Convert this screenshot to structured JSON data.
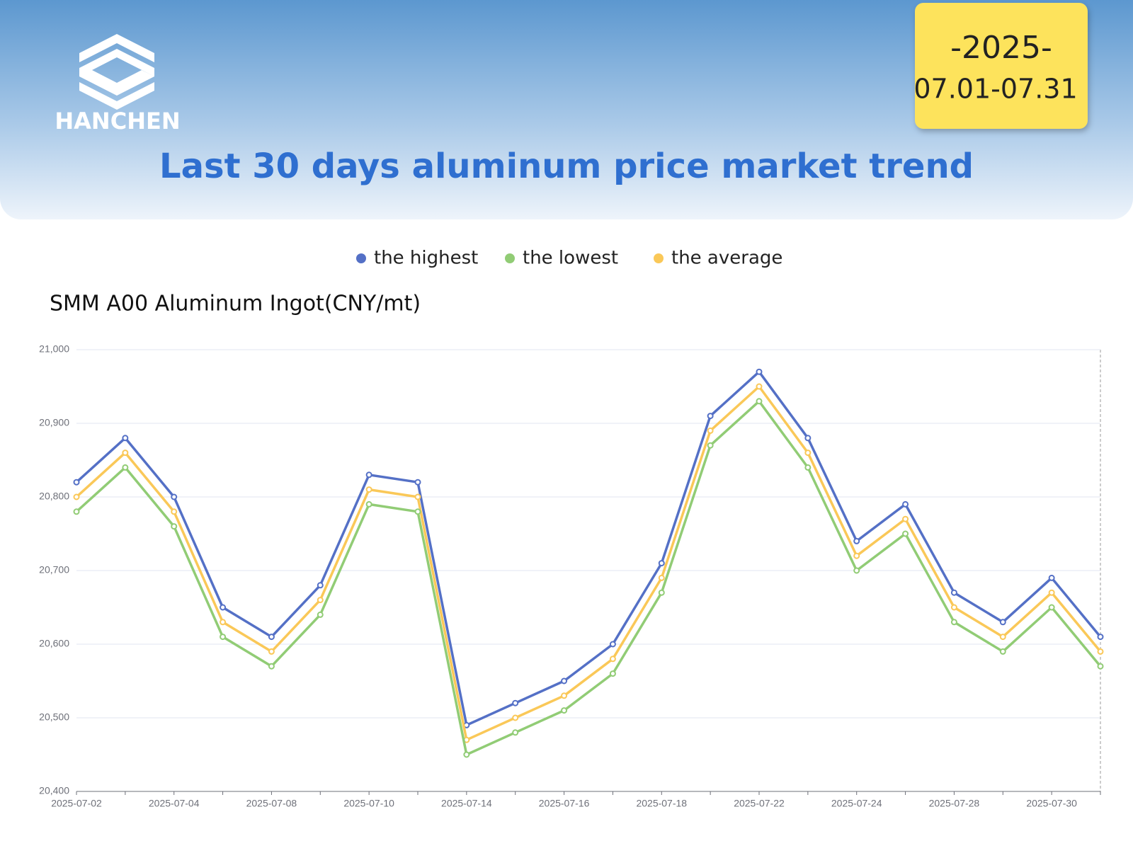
{
  "header": {
    "logo": "HANCHEN",
    "year": "-2025-",
    "date_range": "07.01-07.31",
    "title": "Last 30 days aluminum price market trend"
  },
  "chart_data": {
    "type": "line",
    "title": "SMM A00 Aluminum Ingot(CNY/mt)",
    "categories": [
      "2025-07-02",
      null,
      "2025-07-04",
      null,
      "2025-07-08",
      null,
      "2025-07-10",
      null,
      "2025-07-14",
      null,
      "2025-07-16",
      null,
      "2025-07-18",
      null,
      "2025-07-22",
      null,
      "2025-07-24",
      null,
      "2025-07-28",
      null,
      "2025-07-30",
      null
    ],
    "series": [
      {
        "name": "the highest",
        "color": "#5470c6",
        "values": [
          20820,
          20880,
          20800,
          20650,
          20610,
          20680,
          20830,
          20820,
          20490,
          20520,
          20550,
          20600,
          20710,
          20910,
          20970,
          20880,
          20740,
          20790,
          20670,
          20630,
          20690,
          20610
        ]
      },
      {
        "name": "the lowest",
        "color": "#91cc75",
        "values": [
          20780,
          20840,
          20760,
          20610,
          20570,
          20640,
          20790,
          20780,
          20450,
          20480,
          20510,
          20560,
          20670,
          20870,
          20930,
          20840,
          20700,
          20750,
          20630,
          20590,
          20650,
          20570
        ]
      },
      {
        "name": "the average",
        "color": "#fac858",
        "values": [
          20800,
          20860,
          20780,
          20630,
          20590,
          20660,
          20810,
          20800,
          20470,
          20500,
          20530,
          20580,
          20690,
          20890,
          20950,
          20860,
          20720,
          20770,
          20650,
          20610,
          20670,
          20590
        ]
      }
    ],
    "ylim": [
      20400,
      21000
    ],
    "yticks": [
      {
        "value": 20400,
        "label": "20,400"
      },
      {
        "value": 20500,
        "label": "20,500"
      },
      {
        "value": 20600,
        "label": "20,600"
      },
      {
        "value": 20700,
        "label": "20,700"
      },
      {
        "value": 20800,
        "label": "20,800"
      },
      {
        "value": 20900,
        "label": "20,900"
      },
      {
        "value": 21000,
        "label": "21,000"
      }
    ],
    "grid": true,
    "legend": "top"
  }
}
